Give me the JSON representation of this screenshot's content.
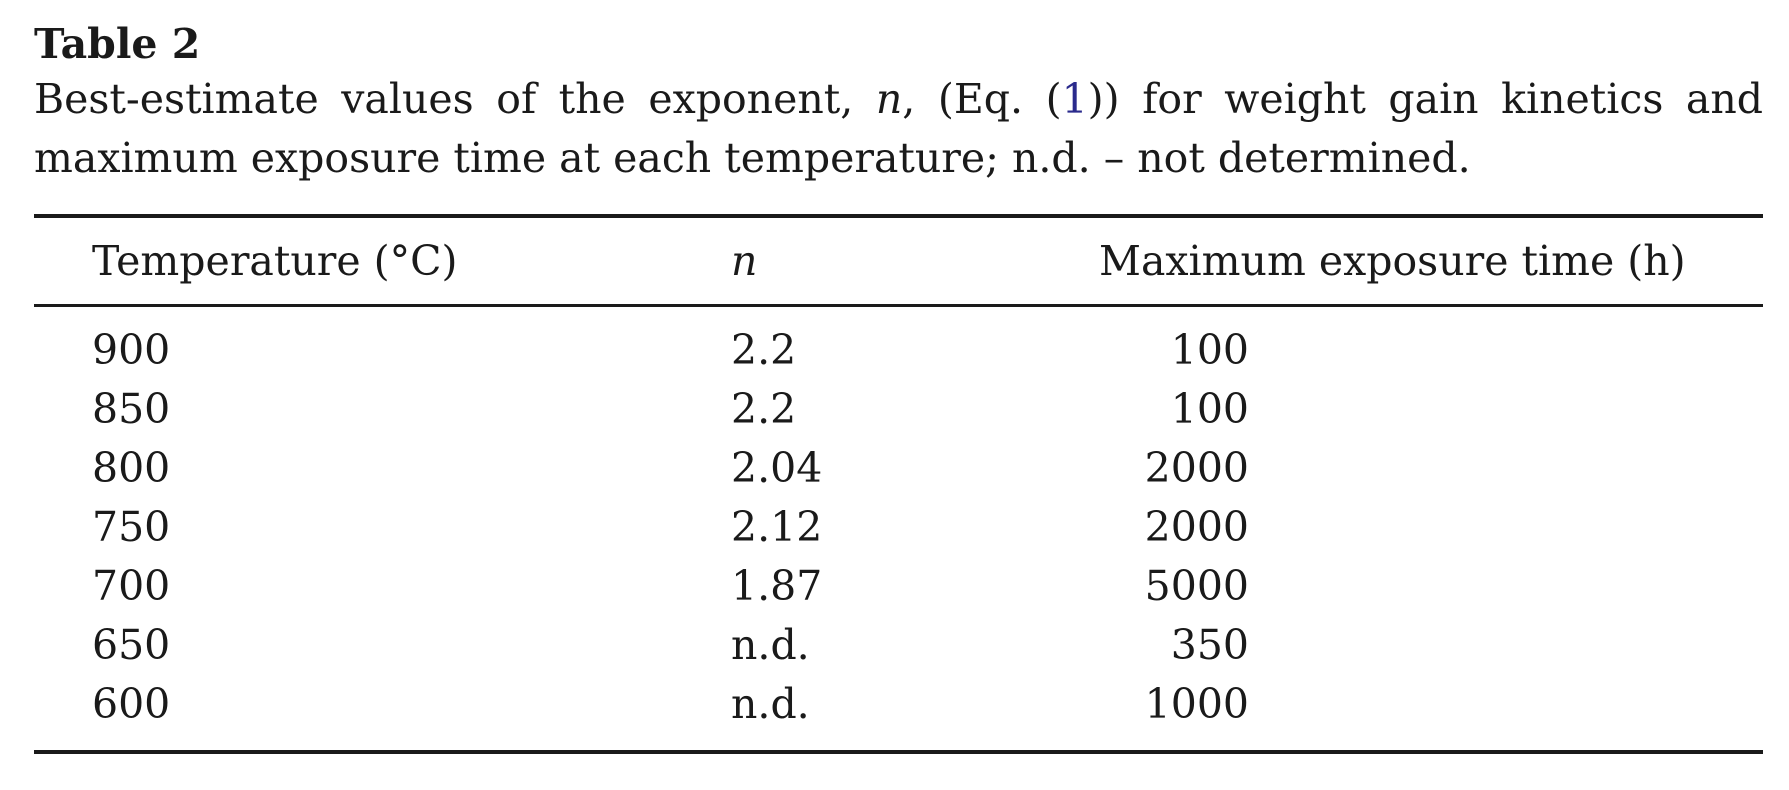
{
  "table": {
    "label": "Table 2",
    "caption": {
      "part1": "Best-estimate values of the exponent, ",
      "n_symbol": "n",
      "part2": ", (Eq. (",
      "eq_ref": "1",
      "part3": ")) for weight gain kinetics and maximum exposure time at each temperature; n.d. – not determined."
    },
    "headers": [
      "Temperature (°C)",
      "n",
      "Maximum exposure time (h)"
    ],
    "rows": [
      [
        "900",
        "2.2",
        "100"
      ],
      [
        "850",
        "2.2",
        "100"
      ],
      [
        "800",
        "2.04",
        "2000"
      ],
      [
        "750",
        "2.12",
        "2000"
      ],
      [
        "700",
        "1.87",
        "5000"
      ],
      [
        "650",
        "n.d.",
        "350"
      ],
      [
        "600",
        "n.d.",
        "1000"
      ]
    ]
  }
}
